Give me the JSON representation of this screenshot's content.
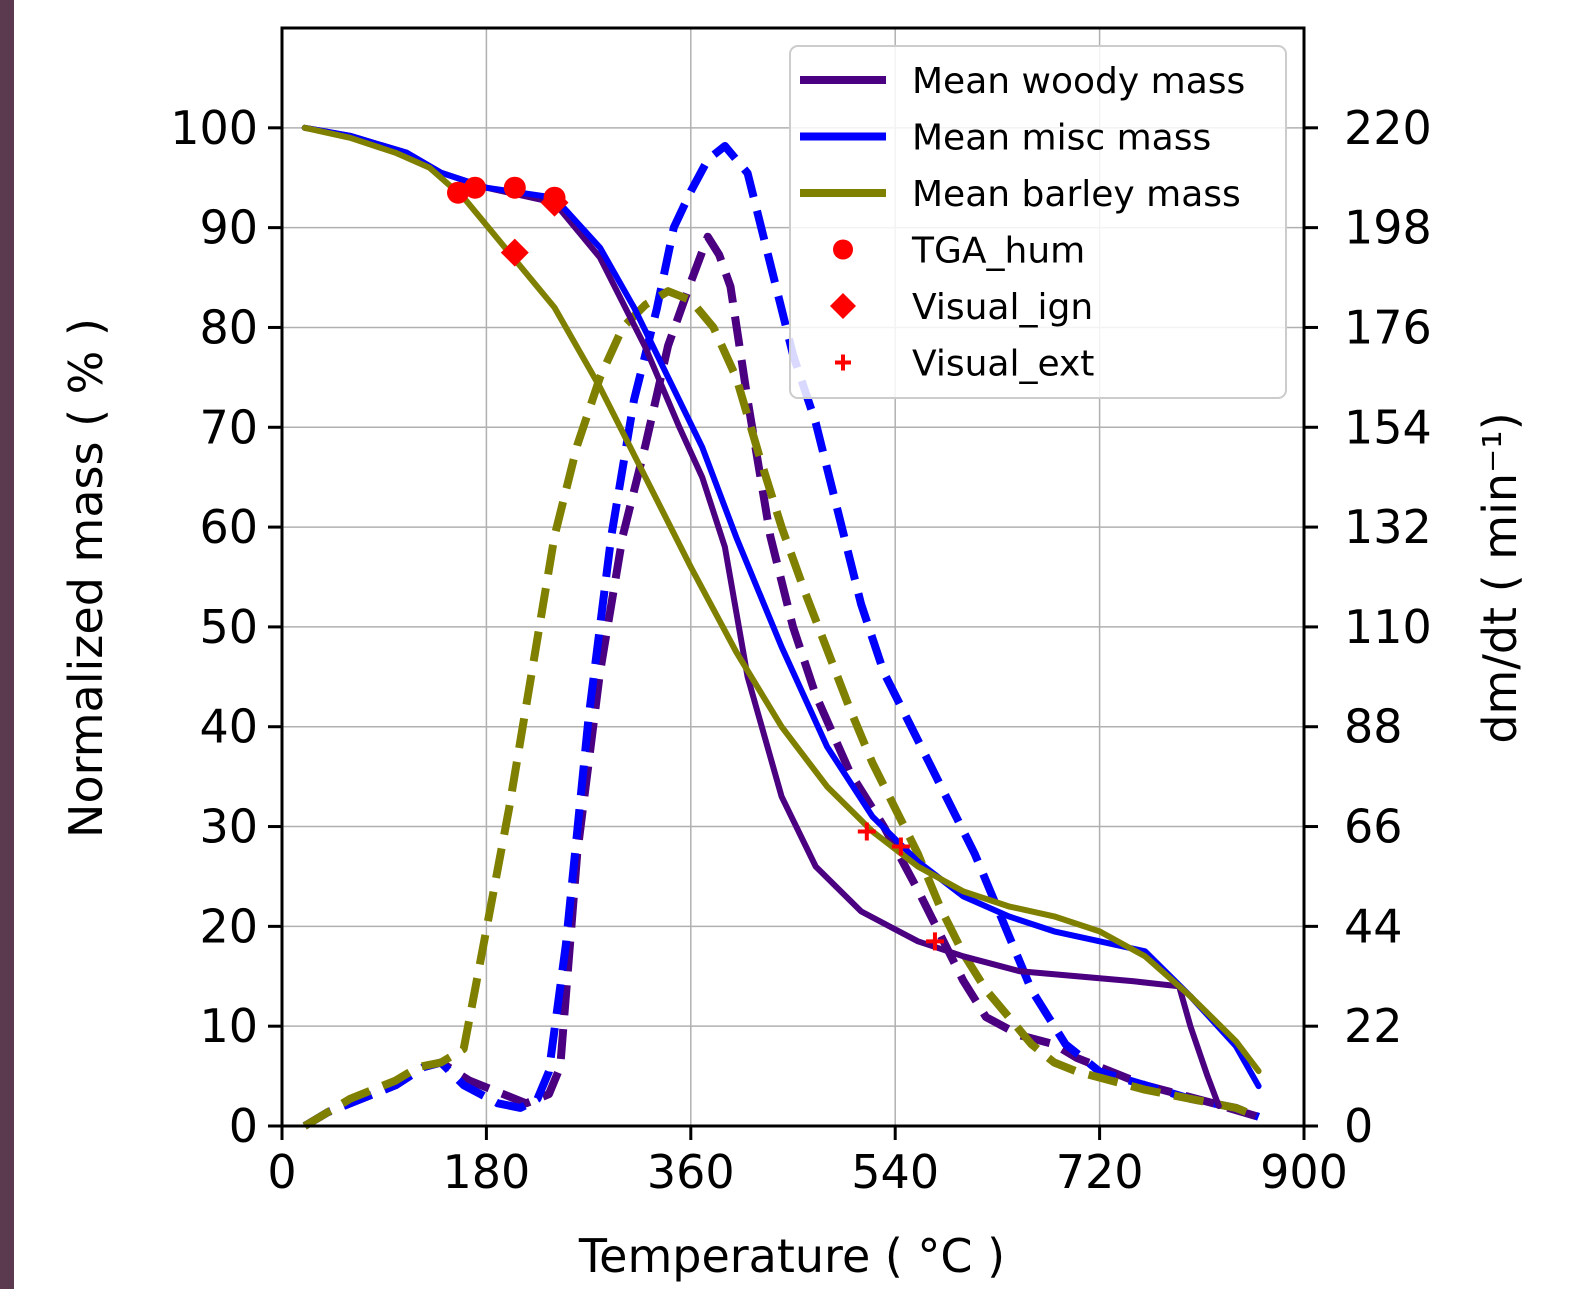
{
  "strip_color": "#5b3a4f",
  "chart_data": {
    "type": "line",
    "xlabel": "Temperature ( °C )",
    "ylabel": "Normalized mass ( % )",
    "y2label": "dm/dt ( min⁻¹)",
    "xlim": [
      0,
      900
    ],
    "ylim": [
      0,
      110
    ],
    "y2lim": [
      0,
      242
    ],
    "xticks": [
      0,
      180,
      360,
      540,
      720,
      900
    ],
    "yticks": [
      0,
      10,
      20,
      30,
      40,
      50,
      60,
      70,
      80,
      90,
      100
    ],
    "y2ticks": [
      0,
      22,
      44,
      66,
      88,
      110,
      132,
      154,
      176,
      198,
      220
    ],
    "grid": true,
    "legend_position": "top-right",
    "colors": {
      "woody": "#4b0082",
      "misc": "#0000ff",
      "barley": "#808000",
      "marker": "#ff0000"
    },
    "mass_series": [
      {
        "name": "Mean woody mass",
        "color": "#4b0082",
        "points": [
          [
            20,
            100
          ],
          [
            60,
            99.2
          ],
          [
            110,
            97.5
          ],
          [
            140,
            95.5
          ],
          [
            180,
            94
          ],
          [
            240,
            92.5
          ],
          [
            280,
            87
          ],
          [
            320,
            78
          ],
          [
            350,
            70
          ],
          [
            370,
            65
          ],
          [
            390,
            58
          ],
          [
            410,
            45
          ],
          [
            440,
            33
          ],
          [
            470,
            26
          ],
          [
            510,
            21.5
          ],
          [
            560,
            18.5
          ],
          [
            600,
            17
          ],
          [
            650,
            15.5
          ],
          [
            700,
            15
          ],
          [
            750,
            14.5
          ],
          [
            790,
            14
          ],
          [
            800,
            10
          ],
          [
            815,
            5
          ],
          [
            825,
            2
          ]
        ]
      },
      {
        "name": "Mean misc mass",
        "color": "#0000ff",
        "points": [
          [
            20,
            100
          ],
          [
            60,
            99.2
          ],
          [
            110,
            97.5
          ],
          [
            140,
            95.5
          ],
          [
            180,
            94
          ],
          [
            240,
            93
          ],
          [
            280,
            88
          ],
          [
            310,
            82
          ],
          [
            340,
            75
          ],
          [
            370,
            68
          ],
          [
            400,
            59
          ],
          [
            440,
            48
          ],
          [
            480,
            38
          ],
          [
            520,
            31
          ],
          [
            560,
            26.5
          ],
          [
            600,
            23
          ],
          [
            640,
            21
          ],
          [
            680,
            19.5
          ],
          [
            720,
            18.5
          ],
          [
            760,
            17.5
          ],
          [
            800,
            13
          ],
          [
            840,
            8
          ],
          [
            860,
            4
          ]
        ]
      },
      {
        "name": "Mean barley mass",
        "color": "#808000",
        "points": [
          [
            20,
            100
          ],
          [
            60,
            99
          ],
          [
            100,
            97.5
          ],
          [
            130,
            96
          ],
          [
            160,
            93
          ],
          [
            200,
            87.5
          ],
          [
            240,
            82
          ],
          [
            280,
            74
          ],
          [
            320,
            65
          ],
          [
            360,
            56
          ],
          [
            400,
            47.5
          ],
          [
            440,
            40
          ],
          [
            480,
            34
          ],
          [
            520,
            29.5
          ],
          [
            560,
            26
          ],
          [
            600,
            23.5
          ],
          [
            640,
            22
          ],
          [
            680,
            21
          ],
          [
            720,
            19.5
          ],
          [
            760,
            17
          ],
          [
            800,
            13
          ],
          [
            840,
            8.5
          ],
          [
            860,
            5.5
          ]
        ]
      }
    ],
    "rate_series": [
      {
        "name": "woody dm/dt",
        "color": "#4b0082",
        "points": [
          [
            20,
            0
          ],
          [
            40,
            3
          ],
          [
            70,
            6
          ],
          [
            100,
            9
          ],
          [
            125,
            13
          ],
          [
            140,
            14
          ],
          [
            165,
            10
          ],
          [
            195,
            7
          ],
          [
            215,
            5
          ],
          [
            235,
            7
          ],
          [
            245,
            13
          ],
          [
            260,
            60
          ],
          [
            280,
            100
          ],
          [
            300,
            130
          ],
          [
            320,
            150
          ],
          [
            340,
            172
          ],
          [
            360,
            186
          ],
          [
            375,
            196
          ],
          [
            385,
            192
          ],
          [
            395,
            185
          ],
          [
            410,
            160
          ],
          [
            430,
            130
          ],
          [
            450,
            110
          ],
          [
            470,
            95
          ],
          [
            500,
            78
          ],
          [
            530,
            66
          ],
          [
            560,
            52
          ],
          [
            580,
            42
          ],
          [
            600,
            32
          ],
          [
            620,
            24
          ],
          [
            650,
            20
          ],
          [
            680,
            18
          ],
          [
            700,
            15
          ],
          [
            730,
            12
          ],
          [
            760,
            9
          ],
          [
            790,
            7
          ],
          [
            820,
            5
          ],
          [
            860,
            2
          ]
        ]
      },
      {
        "name": "misc dm/dt",
        "color": "#0000ff",
        "points": [
          [
            20,
            0
          ],
          [
            40,
            3
          ],
          [
            70,
            6
          ],
          [
            100,
            9
          ],
          [
            125,
            13
          ],
          [
            140,
            14
          ],
          [
            160,
            9
          ],
          [
            190,
            5
          ],
          [
            210,
            4
          ],
          [
            225,
            6
          ],
          [
            235,
            12
          ],
          [
            250,
            40
          ],
          [
            270,
            90
          ],
          [
            290,
            130
          ],
          [
            310,
            160
          ],
          [
            330,
            180
          ],
          [
            345,
            198
          ],
          [
            360,
            206
          ],
          [
            375,
            213
          ],
          [
            390,
            216
          ],
          [
            410,
            210
          ],
          [
            430,
            190
          ],
          [
            450,
            170
          ],
          [
            470,
            155
          ],
          [
            490,
            135
          ],
          [
            510,
            115
          ],
          [
            530,
            100
          ],
          [
            550,
            90
          ],
          [
            570,
            80
          ],
          [
            590,
            70
          ],
          [
            610,
            60
          ],
          [
            630,
            48
          ],
          [
            660,
            30
          ],
          [
            690,
            18
          ],
          [
            720,
            12
          ],
          [
            760,
            9
          ],
          [
            800,
            6
          ],
          [
            840,
            4
          ],
          [
            860,
            2
          ]
        ]
      },
      {
        "name": "barley dm/dt",
        "color": "#808000",
        "points": [
          [
            20,
            0
          ],
          [
            40,
            3
          ],
          [
            60,
            6
          ],
          [
            80,
            8
          ],
          [
            100,
            10
          ],
          [
            120,
            13
          ],
          [
            140,
            14
          ],
          [
            160,
            17
          ],
          [
            170,
            30
          ],
          [
            185,
            50
          ],
          [
            200,
            70
          ],
          [
            220,
            100
          ],
          [
            240,
            130
          ],
          [
            260,
            150
          ],
          [
            280,
            165
          ],
          [
            300,
            176
          ],
          [
            320,
            181
          ],
          [
            340,
            184
          ],
          [
            360,
            182
          ],
          [
            380,
            176
          ],
          [
            400,
            165
          ],
          [
            420,
            148
          ],
          [
            440,
            132
          ],
          [
            460,
            118
          ],
          [
            480,
            105
          ],
          [
            500,
            92
          ],
          [
            520,
            80
          ],
          [
            540,
            70
          ],
          [
            560,
            60
          ],
          [
            580,
            48
          ],
          [
            600,
            38
          ],
          [
            620,
            30
          ],
          [
            640,
            24
          ],
          [
            660,
            18
          ],
          [
            680,
            14
          ],
          [
            700,
            12
          ],
          [
            730,
            10
          ],
          [
            760,
            8
          ],
          [
            800,
            6
          ],
          [
            840,
            4
          ],
          [
            860,
            2
          ]
        ]
      }
    ],
    "markers": {
      "TGA_hum": [
        [
          155,
          93.5
        ],
        [
          170,
          94
        ],
        [
          205,
          94
        ],
        [
          240,
          93
        ]
      ],
      "Visual_ign": [
        [
          205,
          87.5
        ],
        [
          240,
          92.5
        ]
      ],
      "Visual_ext": [
        [
          515,
          29.5
        ],
        [
          545,
          28
        ],
        [
          575,
          18.5
        ]
      ]
    },
    "legend_entries": [
      {
        "label": "Mean woody mass",
        "kind": "line",
        "color": "#4b0082"
      },
      {
        "label": "Mean misc mass",
        "kind": "line",
        "color": "#0000ff"
      },
      {
        "label": "Mean barley mass",
        "kind": "line",
        "color": "#808000"
      },
      {
        "label": "TGA_hum",
        "kind": "circle",
        "color": "#ff0000"
      },
      {
        "label": "Visual_ign",
        "kind": "diamond",
        "color": "#ff0000"
      },
      {
        "label": "Visual_ext",
        "kind": "plus",
        "color": "#ff0000"
      }
    ]
  }
}
